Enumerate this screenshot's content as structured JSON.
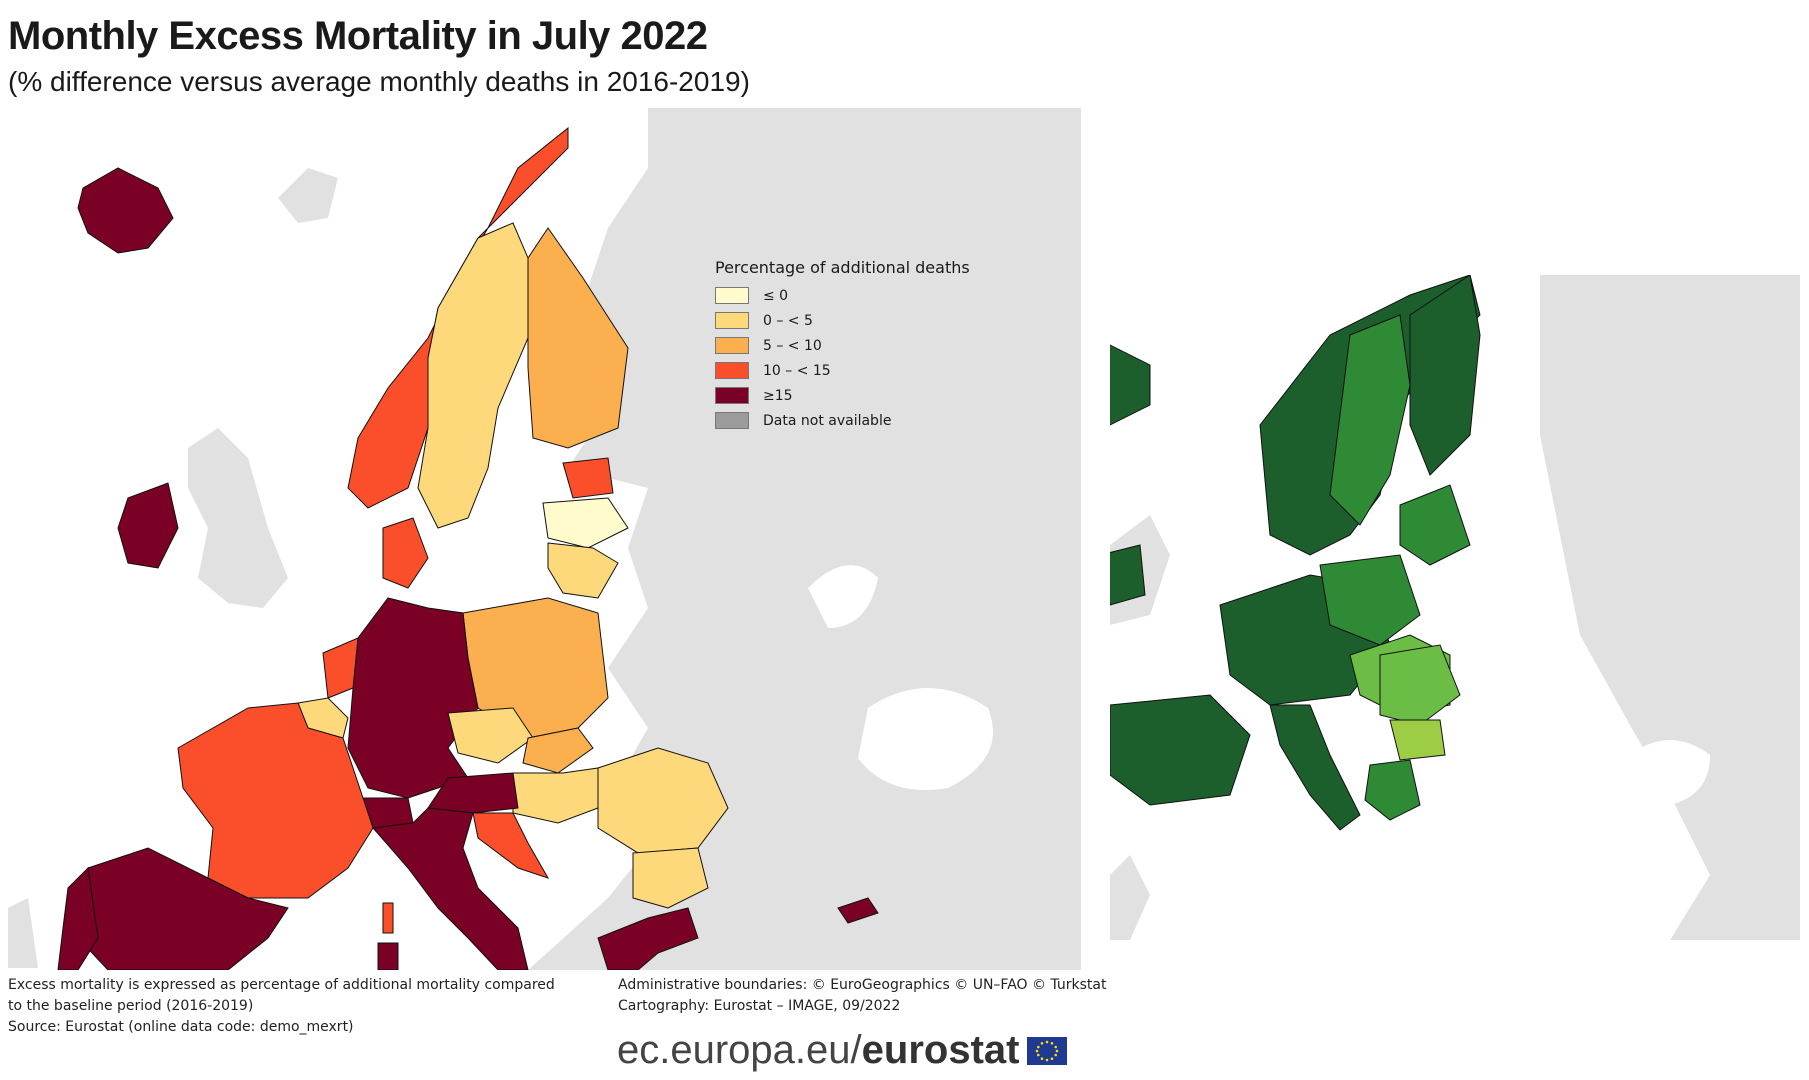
{
  "title": "Monthly Excess Mortality in July 2022",
  "subtitle": "(% difference versus average monthly deaths in 2016-2019)",
  "legend": {
    "title": "Percentage of additional deaths",
    "items": [
      {
        "label": "≤ 0",
        "color": "#fffbcc"
      },
      {
        "label": "0 – < 5",
        "color": "#fed97b"
      },
      {
        "label": "5 – < 10",
        "color": "#fbaf4f"
      },
      {
        "label": "10 – < 15",
        "color": "#fb4f2b"
      },
      {
        "label": "≥15",
        "color": "#7a0026"
      },
      {
        "label": "Data not available",
        "color": "#9b9b9b"
      }
    ]
  },
  "colors": {
    "background_country": "#e1e1e1",
    "sea": "#ffffff",
    "border": "#111111",
    "green_dark": "#1c5e2c",
    "green_mid": "#2f8a36",
    "green_light": "#6bbd45",
    "green_pale": "#9ccd45"
  },
  "notes": {
    "line1": "Excess mortality is expressed as percentage of additional mortality compared",
    "line2": "to the baseline period (2016-2019)",
    "line3": "Source: Eurostat (online data code: demo_mexrt)"
  },
  "credits": {
    "line1": "Administrative boundaries: © EuroGeographics © UN–FAO © Turkstat",
    "line2": "Cartography: Eurostat – IMAGE, 09/2022"
  },
  "footer": {
    "prefix": "ec.europa.eu/",
    "brand": "eurostat"
  }
}
